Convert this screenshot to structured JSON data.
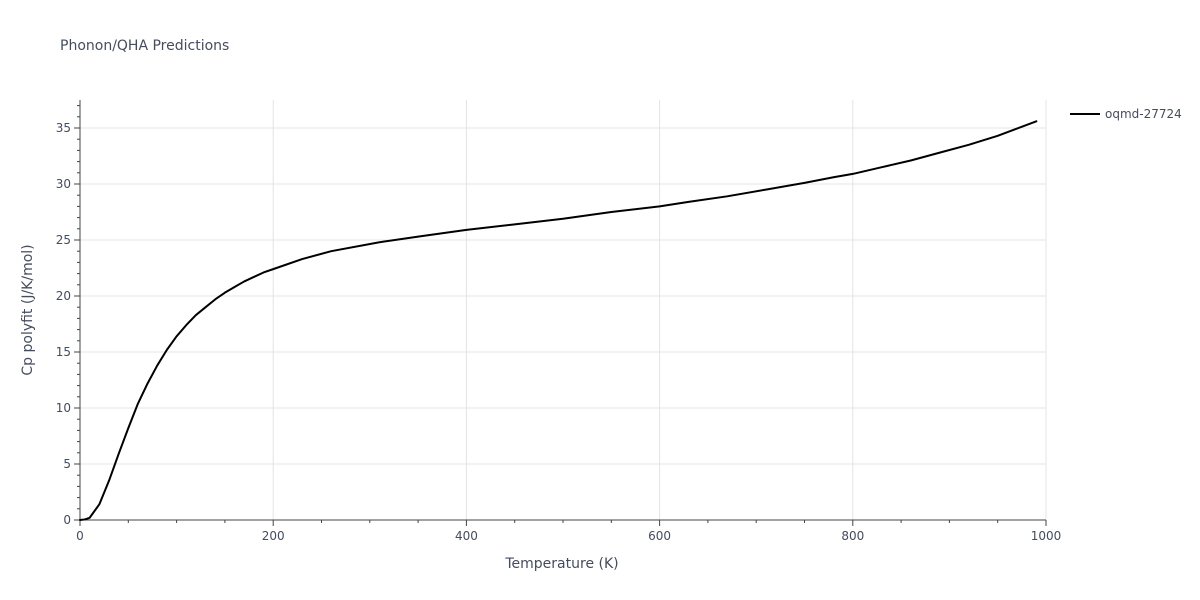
{
  "chart_data": {
    "type": "line",
    "title": "Phonon/QHA Predictions",
    "xlabel": "Temperature (K)",
    "ylabel": "Cp polyfit (J/K/mol)",
    "xlim": [
      0,
      1000
    ],
    "ylim": [
      0,
      37.5
    ],
    "x_ticks": [
      0,
      200,
      400,
      600,
      800,
      1000
    ],
    "y_ticks": [
      0,
      5,
      10,
      15,
      20,
      25,
      30,
      35
    ],
    "x_minor_step": 50,
    "y_minor_step": 1,
    "grid": true,
    "legend_position": "top-right",
    "series": [
      {
        "name": "oqmd-27724",
        "color": "#000000",
        "x": [
          0,
          5,
          10,
          20,
          30,
          40,
          50,
          60,
          70,
          80,
          90,
          100,
          110,
          120,
          130,
          140,
          150,
          160,
          170,
          180,
          190,
          200,
          230,
          260,
          310,
          350,
          400,
          450,
          500,
          550,
          600,
          630,
          670,
          710,
          750,
          780,
          800,
          830,
          860,
          890,
          920,
          950,
          990
        ],
        "y": [
          0,
          0.05,
          0.2,
          1.4,
          3.5,
          5.9,
          8.2,
          10.4,
          12.2,
          13.8,
          15.2,
          16.4,
          17.4,
          18.3,
          19.0,
          19.7,
          20.3,
          20.8,
          21.3,
          21.7,
          22.1,
          22.4,
          23.3,
          24.0,
          24.8,
          25.3,
          25.9,
          26.4,
          26.9,
          27.5,
          28.0,
          28.4,
          28.9,
          29.5,
          30.1,
          30.6,
          30.9,
          31.5,
          32.1,
          32.8,
          33.5,
          34.3,
          35.6
        ]
      }
    ]
  }
}
